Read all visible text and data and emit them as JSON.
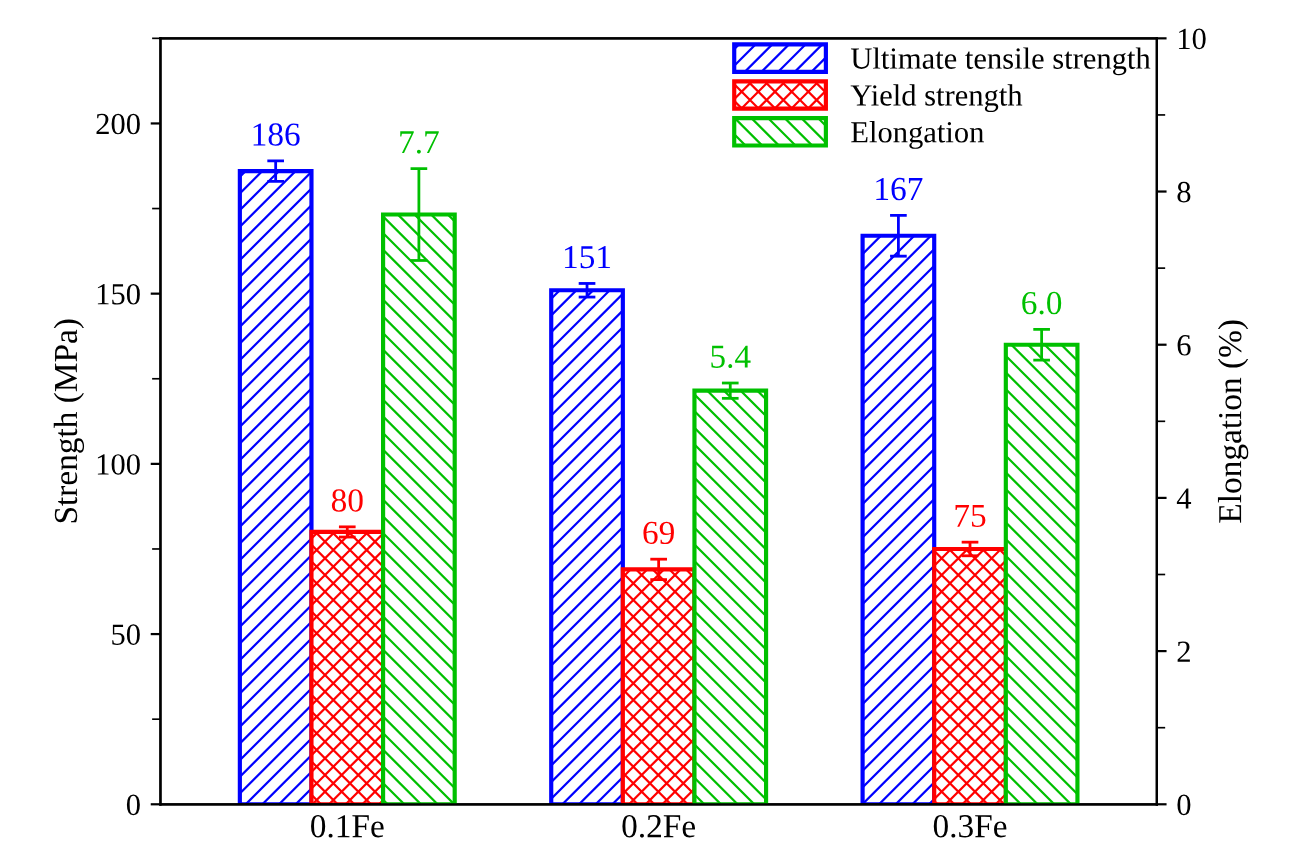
{
  "chart_data": {
    "type": "bar",
    "ylabel": "Strength (MPa)",
    "y2label": "Elongation (%)",
    "categories": [
      "0.1Fe",
      "0.2Fe",
      "0.3Fe"
    ],
    "series": [
      {
        "name": "Ultimate tensile strength",
        "color": "#0000ff",
        "values": [
          186,
          151,
          167
        ],
        "errors": [
          3,
          2,
          6
        ],
        "value_labels": [
          "186",
          "151",
          "167"
        ]
      },
      {
        "name": "Yield strength",
        "color": "#ff0000",
        "values": [
          80,
          69,
          75
        ],
        "errors": [
          1.5,
          3,
          2
        ],
        "value_labels": [
          "80",
          "69",
          "75"
        ]
      },
      {
        "name": "Elongation",
        "color": "#00c000",
        "axis": "y2",
        "values": [
          7.7,
          5.4,
          6.0
        ],
        "errors": [
          0.6,
          0.1,
          0.2
        ],
        "value_labels": [
          "7.7",
          "5.4",
          "6.0"
        ]
      }
    ],
    "ylim": [
      0,
      225
    ],
    "yticks": [
      0,
      50,
      100,
      150,
      200
    ],
    "y2lim": [
      0,
      10
    ],
    "y2ticks": [
      0,
      2,
      4,
      6,
      8,
      10
    ],
    "grid": false,
    "legend": "top right"
  }
}
